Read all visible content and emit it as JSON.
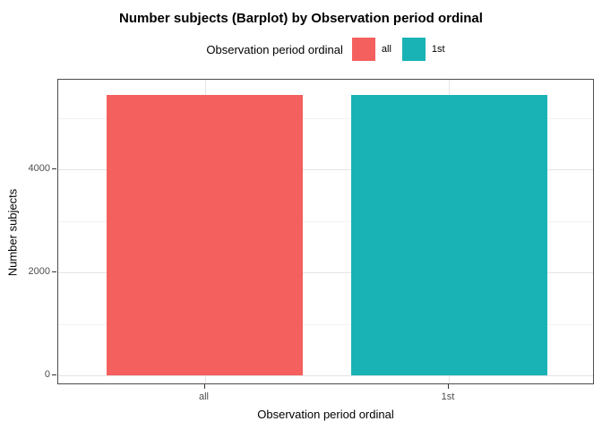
{
  "title": "Number subjects (Barplot) by Observation period ordinal",
  "legend": {
    "title": "Observation period ordinal",
    "items": [
      {
        "label": "all",
        "color": "#f4605d"
      },
      {
        "label": "1st",
        "color": "#19b3b6"
      }
    ]
  },
  "y_axis": {
    "title": "Number subjects",
    "tick_labels": [
      "0",
      "2000",
      "4000"
    ],
    "minor_ticks": [
      1000,
      3000,
      5000
    ]
  },
  "x_axis": {
    "title": "Observation period ordinal",
    "tick_labels": [
      "all",
      "1st"
    ]
  },
  "chart_data": {
    "type": "bar",
    "title": "Number subjects (Barplot) by Observation period ordinal",
    "categories": [
      "all",
      "1st"
    ],
    "values": [
      5440,
      5440
    ],
    "colors": [
      "#f4605d",
      "#19b3b6"
    ],
    "xlabel": "Observation period ordinal",
    "ylabel": "Number subjects",
    "ylim": [
      0,
      5740
    ],
    "yticks": [
      0,
      2000,
      4000
    ],
    "minor_yticks": [
      1000,
      3000,
      5000
    ],
    "grid": true,
    "legend_title": "Observation period ordinal",
    "legend_position": "top",
    "legend_labels": [
      "all",
      "1st"
    ]
  }
}
